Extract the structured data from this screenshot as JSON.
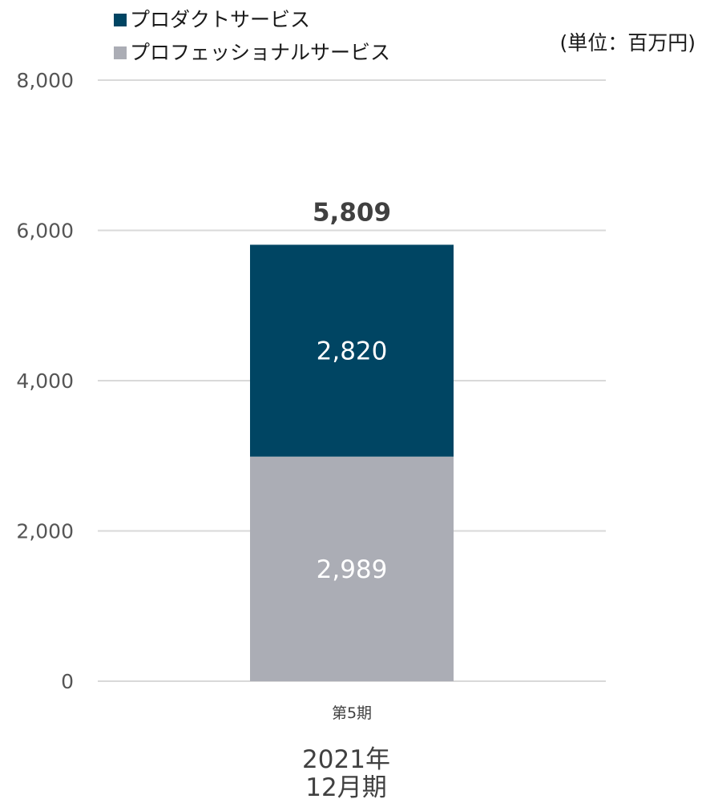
{
  "unit_note": "(単位：百万円)",
  "footer": {
    "line1": "2021年",
    "line2": "12月期"
  },
  "colors": {
    "product": "#004563",
    "professional": "#abadb5",
    "grid": "#d9d9d9"
  },
  "chart_data": {
    "type": "bar",
    "stacked": true,
    "categories": [
      "第5期"
    ],
    "series": [
      {
        "name": "プロダクトサービス",
        "values": [
          2820
        ],
        "color": "#004563"
      },
      {
        "name": "プロフェッショナルサービス",
        "values": [
          2989
        ],
        "color": "#abadb5"
      }
    ],
    "totals": [
      5809
    ],
    "total_labels": [
      "5,809"
    ],
    "segment_labels": [
      [
        "2,820"
      ],
      [
        "2,989"
      ]
    ],
    "ylim": [
      0,
      8000
    ],
    "yticks": [
      0,
      2000,
      4000,
      6000,
      8000
    ],
    "ytick_labels": [
      "0",
      "2,000",
      "4,000",
      "6,000",
      "8,000"
    ],
    "grid": true,
    "legend_position": "top-left"
  }
}
